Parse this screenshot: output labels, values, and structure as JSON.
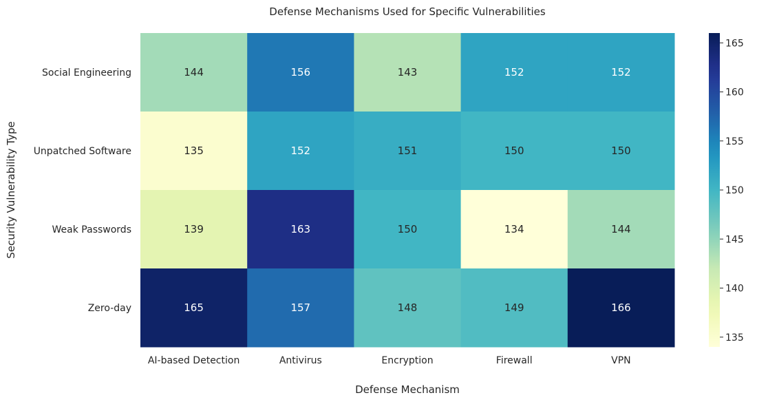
{
  "chart_data": {
    "type": "heatmap",
    "title": "Defense Mechanisms Used for Specific Vulnerabilities",
    "xlabel": "Defense Mechanism",
    "ylabel": "Security Vulnerability Type",
    "x_categories": [
      "AI-based Detection",
      "Antivirus",
      "Encryption",
      "Firewall",
      "VPN"
    ],
    "y_categories": [
      "Social Engineering",
      "Unpatched Software",
      "Weak Passwords",
      "Zero-day"
    ],
    "values": [
      [
        144,
        156,
        143,
        152,
        152
      ],
      [
        135,
        152,
        151,
        150,
        150
      ],
      [
        139,
        163,
        150,
        134,
        144
      ],
      [
        165,
        157,
        148,
        149,
        166
      ]
    ],
    "colormap": "YlGnBu",
    "vmin": 134,
    "vmax": 166,
    "colorbar_ticks": [
      135,
      140,
      145,
      150,
      155,
      160,
      165
    ],
    "annotations": true
  }
}
